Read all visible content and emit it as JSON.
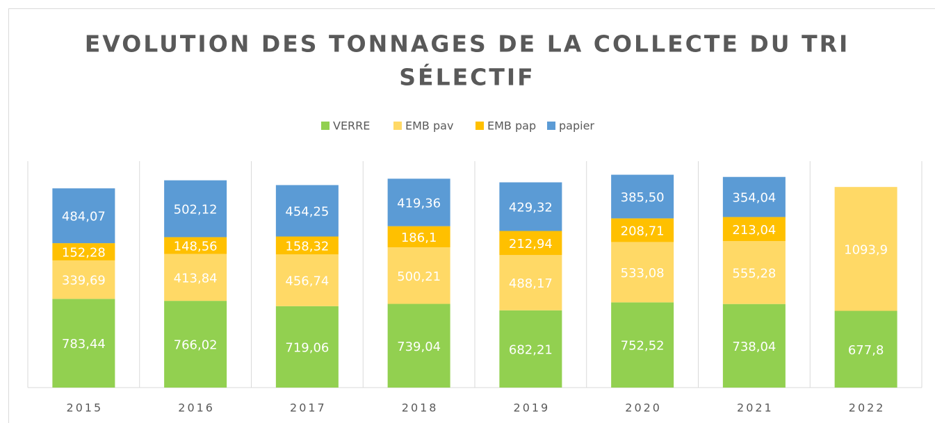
{
  "chart_data": {
    "type": "stacked_bar",
    "title": "EVOLUTION DES TONNAGES DE LA COLLECTE DU TRI SÉLECTIF",
    "categories": [
      "2015",
      "2016",
      "2017",
      "2018",
      "2019",
      "2020",
      "2021",
      "2022"
    ],
    "series": [
      {
        "name": "VERRE",
        "color": "#92d050",
        "values": [
          783.44,
          766.02,
          719.06,
          739.04,
          682.21,
          752.52,
          738.04,
          677.8
        ],
        "value_labels": [
          "783,44",
          "766,02",
          "719,06",
          "739,04",
          "682,21",
          "752,52",
          "738,04",
          "677,8"
        ]
      },
      {
        "name": "EMB pav",
        "color": "#ffd966",
        "values": [
          339.69,
          413.84,
          456.74,
          500.21,
          488.17,
          533.08,
          555.28,
          1093.9
        ],
        "value_labels": [
          "339,69",
          "413,84",
          "456,74",
          "500,21",
          "488,17",
          "533,08",
          "555,28",
          "1093,9"
        ]
      },
      {
        "name": "EMB pap",
        "color": "#ffc000",
        "values": [
          152.28,
          148.56,
          158.32,
          186.1,
          212.94,
          208.71,
          213.04,
          null
        ],
        "value_labels": [
          "152,28",
          "148,56",
          "158,32",
          "186,1",
          "212,94",
          "208,71",
          "213,04",
          null
        ]
      },
      {
        "name": "papier",
        "color": "#5b9bd5",
        "values": [
          484.07,
          502.12,
          454.25,
          419.36,
          429.32,
          385.5,
          354.04,
          null
        ],
        "value_labels": [
          "484,07",
          "502,12",
          "454,25",
          "419,36",
          "429,32",
          "385,50",
          "354,04",
          null
        ]
      }
    ],
    "legend": "top"
  }
}
